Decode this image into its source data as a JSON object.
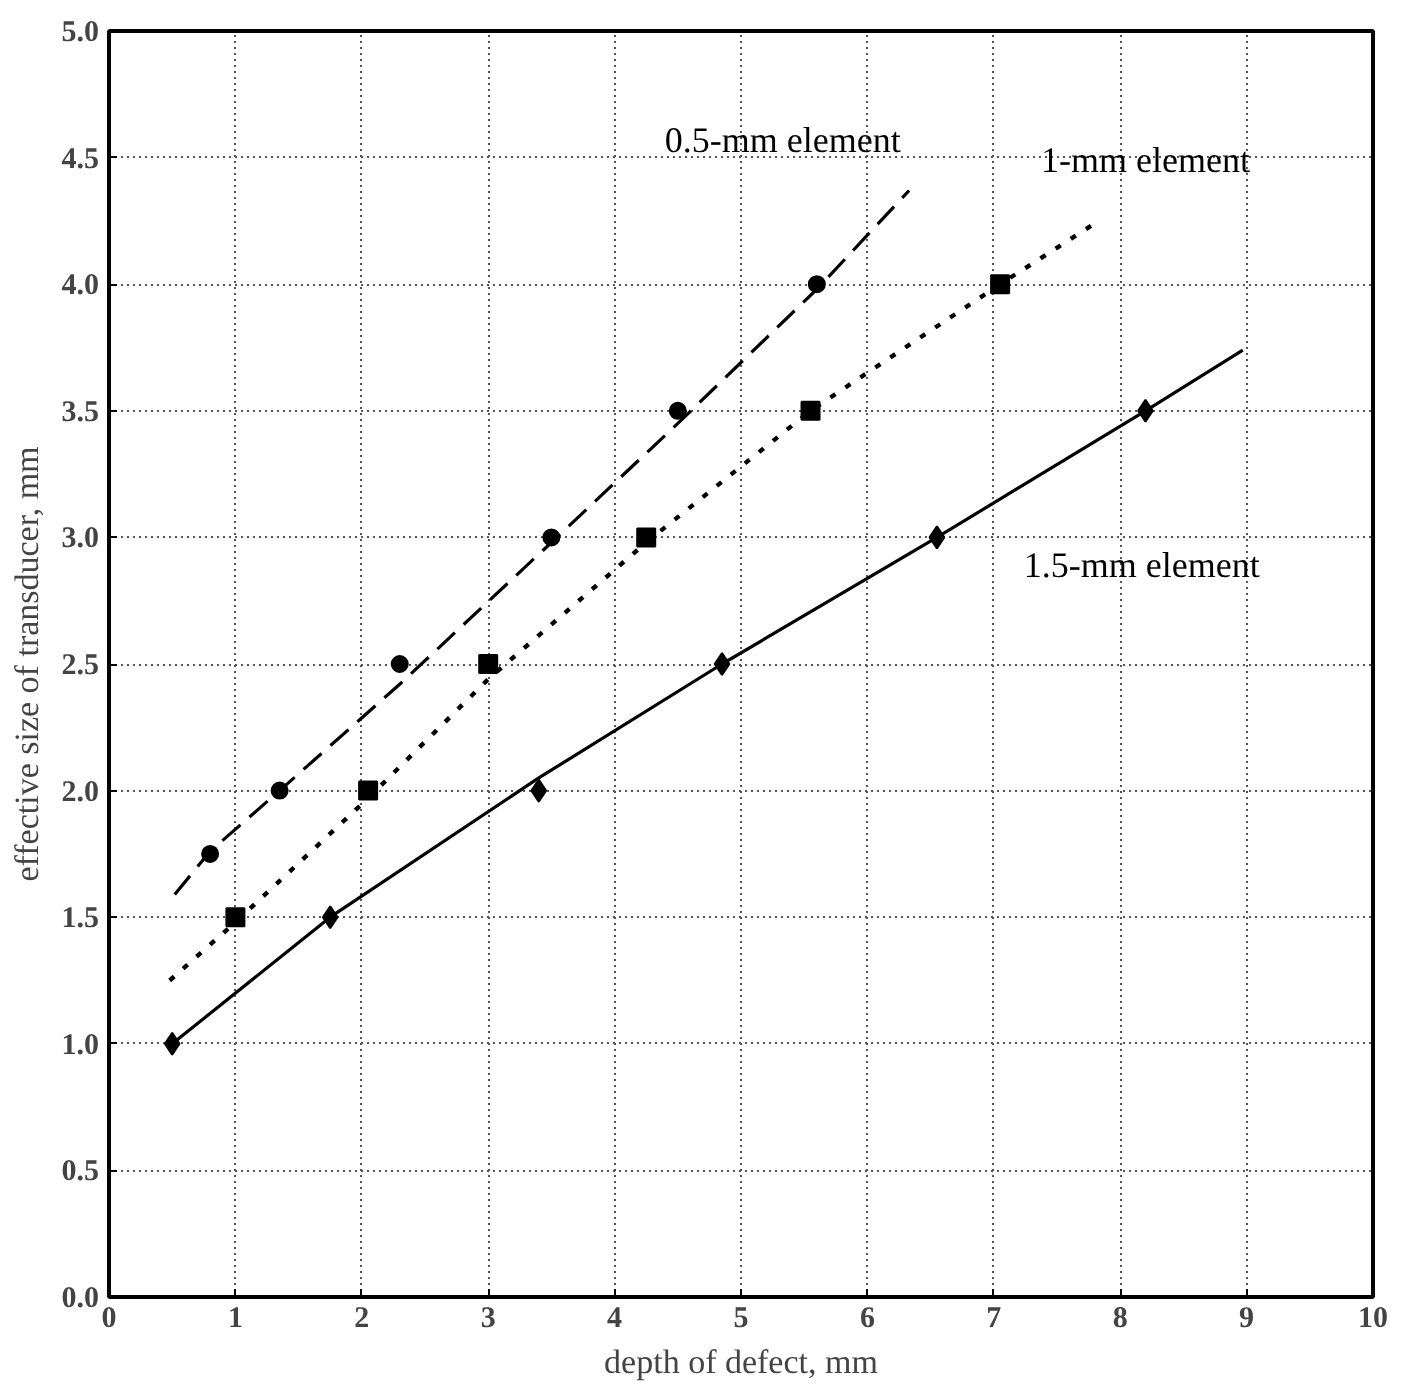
{
  "chart_data": {
    "type": "line",
    "xlabel": "depth of defect, mm",
    "ylabel": "effective size of transducer, mm",
    "xlim": [
      0,
      10
    ],
    "ylim": [
      0,
      5
    ],
    "xticks": [
      0,
      1,
      2,
      3,
      4,
      5,
      6,
      7,
      8,
      9,
      10
    ],
    "yticks": [
      {
        "value": 0,
        "label": "0.0"
      },
      {
        "value": 0.5,
        "label": "0.5"
      },
      {
        "value": 1,
        "label": "1.0"
      },
      {
        "value": 1.5,
        "label": "1.5"
      },
      {
        "value": 2,
        "label": "2.0"
      },
      {
        "value": 2.5,
        "label": "2.5"
      },
      {
        "value": 3,
        "label": "3.0"
      },
      {
        "value": 3.5,
        "label": "3.5"
      },
      {
        "value": 4,
        "label": "4.0"
      },
      {
        "value": 4.5,
        "label": "4.5"
      },
      {
        "value": 5,
        "label": "5.0"
      }
    ],
    "grid": true,
    "series": [
      {
        "name": "0.5-mm element",
        "color": "#000000",
        "line_style": "dashed",
        "marker": "none",
        "x": [
          0.52,
          0.8,
          1.35,
          2.3,
          3.5,
          4.5,
          5.6,
          6.33
        ],
        "values": [
          1.59,
          1.76,
          2.0,
          2.42,
          2.98,
          3.45,
          3.98,
          4.37
        ]
      },
      {
        "name": "1-mm element",
        "color": "#000000",
        "line_style": "dotted",
        "marker": "none",
        "x": [
          0.48,
          1.0,
          2.05,
          3.0,
          4.25,
          5.55,
          7.05,
          7.8
        ],
        "values": [
          1.25,
          1.48,
          1.97,
          2.44,
          2.98,
          3.5,
          4.0,
          4.24
        ]
      },
      {
        "name": "1.5-mm element",
        "color": "#000000",
        "line_style": "solid",
        "marker": "none",
        "x": [
          0.5,
          1.75,
          3.4,
          4.85,
          6.55,
          8.2,
          8.97
        ],
        "values": [
          1.0,
          1.5,
          2.05,
          2.5,
          3.0,
          3.5,
          3.74
        ]
      },
      {
        "type": "scatter",
        "color": "#000000",
        "marker": "circle",
        "x": [
          0.8,
          1.35,
          2.3,
          3.5,
          4.5,
          5.6
        ],
        "values": [
          1.75,
          2.0,
          2.5,
          3.0,
          3.5,
          4.0
        ]
      },
      {
        "type": "scatter",
        "color": "#000000",
        "marker": "square",
        "x": [
          1.0,
          2.05,
          3.0,
          4.25,
          5.55,
          7.05
        ],
        "values": [
          1.5,
          2.0,
          2.5,
          3.0,
          3.5,
          4.0
        ]
      },
      {
        "type": "scatter",
        "color": "#000000",
        "marker": "diamond",
        "x": [
          0.5,
          1.75,
          3.4,
          4.85,
          6.55,
          8.2
        ],
        "values": [
          1.0,
          1.5,
          2.0,
          2.5,
          3.0,
          3.5
        ]
      }
    ]
  }
}
